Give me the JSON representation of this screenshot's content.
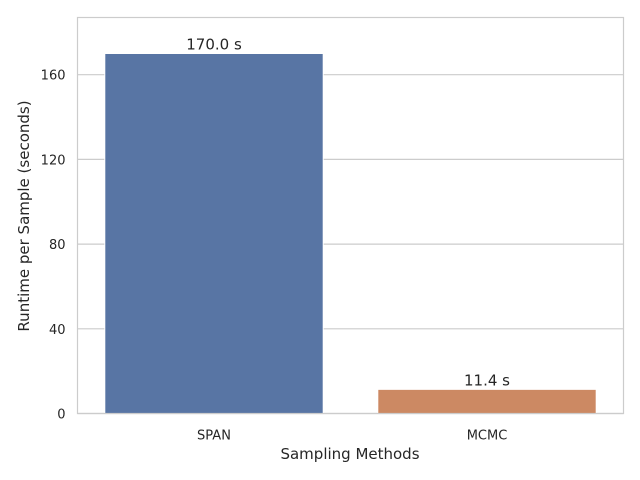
{
  "chart_data": {
    "type": "bar",
    "categories": [
      "SPAN",
      "MCMC"
    ],
    "values": [
      170.0,
      11.4
    ],
    "data_labels": [
      "170.0 s",
      "11.4 s"
    ],
    "colors": [
      "#5875a4",
      "#cc8963"
    ],
    "xlabel": "Sampling Methods",
    "ylabel": "Runtime per Sample (seconds)",
    "ylim": [
      0,
      187
    ],
    "yticks": [
      0,
      40,
      80,
      120,
      160
    ],
    "ytick_labels": [
      "0",
      "40",
      "80",
      "120",
      "160"
    ],
    "grid": "horizontal",
    "legend": "none"
  }
}
